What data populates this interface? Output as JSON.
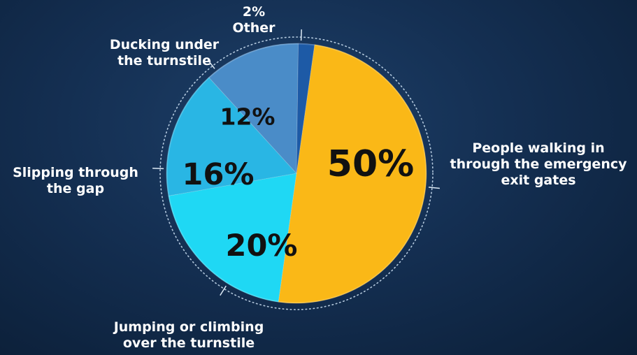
{
  "chart_data": {
    "type": "pie",
    "slices": [
      {
        "value": 50,
        "pct_label": "50%",
        "label_lines": [
          "People walking in",
          "through the emergency",
          "exit gates"
        ],
        "color": "#fab817"
      },
      {
        "value": 20,
        "pct_label": "20%",
        "label_lines": [
          "Jumping or climbing",
          "over the turnstile"
        ],
        "color": "#1fd8f4"
      },
      {
        "value": 16,
        "pct_label": "16%",
        "label_lines": [
          "Slipping through",
          "the gap"
        ],
        "color": "#29b6e4"
      },
      {
        "value": 12,
        "pct_label": "12%",
        "label_lines": [
          "Ducking under",
          "the turnstile"
        ],
        "color": "#4a8cc8"
      },
      {
        "value": 2,
        "pct_label": "2%",
        "label_lines": [
          "Other"
        ],
        "color": "#1d5aa6"
      }
    ],
    "start_angle_deg": 8,
    "direction": "clockwise",
    "label_color": "#ffffff",
    "value_text_color": "#111111",
    "ring_style": "dotted"
  }
}
